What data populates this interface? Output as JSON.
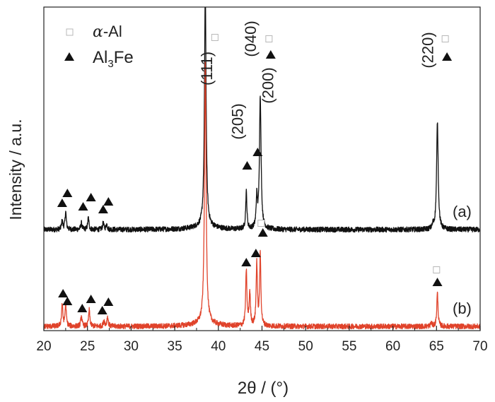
{
  "chart_data": {
    "type": "line",
    "xlabel": "2θ / (°)",
    "ylabel": "Intensity / a.u.",
    "xlim": [
      20,
      70
    ],
    "x_ticks": [
      "20",
      "25",
      "30",
      "35",
      "40",
      "45",
      "50",
      "55",
      "60",
      "65",
      "70"
    ],
    "y_ticks_shown": false,
    "grid": false,
    "legend_position": "top-left",
    "legend": [
      {
        "symbol": "open-square",
        "label_prefix": "α",
        "label_suffix": "-Al",
        "color": "#b8b8b8"
      },
      {
        "symbol": "filled-triangle",
        "label_main": "Al",
        "label_sub": "3",
        "label_tail": "Fe",
        "color": "#111111"
      }
    ],
    "series": [
      {
        "label": "(a)",
        "color": "#111111",
        "peaks": [
          {
            "x": 22.1,
            "h": 0.12
          },
          {
            "x": 22.5,
            "h": 0.24
          },
          {
            "x": 24.3,
            "h": 0.09
          },
          {
            "x": 25.1,
            "h": 0.16
          },
          {
            "x": 26.8,
            "h": 0.09
          },
          {
            "x": 27.2,
            "h": 0.07
          },
          {
            "x": 38.5,
            "h": 3.2
          },
          {
            "x": 43.2,
            "h": 0.5
          },
          {
            "x": 44.4,
            "h": 0.4
          },
          {
            "x": 44.8,
            "h": 1.8
          },
          {
            "x": 64.6,
            "h": 0.05
          },
          {
            "x": 65.1,
            "h": 1.45
          }
        ]
      },
      {
        "label": "(b)",
        "color": "#e0432b",
        "peaks": [
          {
            "x": 22.1,
            "h": 0.3
          },
          {
            "x": 22.5,
            "h": 0.3
          },
          {
            "x": 24.3,
            "h": 0.14
          },
          {
            "x": 25.2,
            "h": 0.22
          },
          {
            "x": 26.9,
            "h": 0.08
          },
          {
            "x": 27.3,
            "h": 0.13
          },
          {
            "x": 38.5,
            "h": 3.5
          },
          {
            "x": 43.2,
            "h": 0.75
          },
          {
            "x": 43.6,
            "h": 0.45
          },
          {
            "x": 44.4,
            "h": 0.85
          },
          {
            "x": 44.8,
            "h": 0.95
          },
          {
            "x": 64.4,
            "h": 0.05
          },
          {
            "x": 65.1,
            "h": 0.45
          }
        ]
      }
    ],
    "annotations": [
      {
        "text": "(111)",
        "x": 39.3
      },
      {
        "text": "(040)",
        "x": 44.3
      },
      {
        "text": "(200)",
        "x": 46.3
      },
      {
        "text": "(205)",
        "x": 42.8
      },
      {
        "text": "(220)",
        "x": 64.6
      }
    ],
    "markers_a": [
      {
        "x": 22.1,
        "shape": "triangle"
      },
      {
        "x": 22.7,
        "shape": "triangle"
      },
      {
        "x": 24.5,
        "shape": "triangle"
      },
      {
        "x": 25.4,
        "shape": "triangle"
      },
      {
        "x": 26.8,
        "shape": "triangle"
      },
      {
        "x": 27.4,
        "shape": "triangle"
      },
      {
        "x": 39.6,
        "shape": "square"
      },
      {
        "x": 43.3,
        "shape": "triangle"
      },
      {
        "x": 44.5,
        "shape": "triangle"
      },
      {
        "x": 45.8,
        "shape": "square"
      },
      {
        "x": 46.0,
        "shape": "triangle"
      },
      {
        "x": 66.0,
        "shape": "square"
      },
      {
        "x": 66.2,
        "shape": "triangle"
      }
    ],
    "markers_b": [
      {
        "x": 22.2,
        "shape": "triangle"
      },
      {
        "x": 22.7,
        "shape": "triangle"
      },
      {
        "x": 24.4,
        "shape": "triangle"
      },
      {
        "x": 25.4,
        "shape": "triangle"
      },
      {
        "x": 26.7,
        "shape": "triangle"
      },
      {
        "x": 27.4,
        "shape": "triangle"
      },
      {
        "x": 43.2,
        "shape": "triangle"
      },
      {
        "x": 44.3,
        "shape": "triangle"
      },
      {
        "x": 44.9,
        "shape": "square"
      },
      {
        "x": 45.1,
        "shape": "triangle"
      },
      {
        "x": 65.0,
        "shape": "square"
      },
      {
        "x": 65.1,
        "shape": "triangle"
      }
    ]
  }
}
